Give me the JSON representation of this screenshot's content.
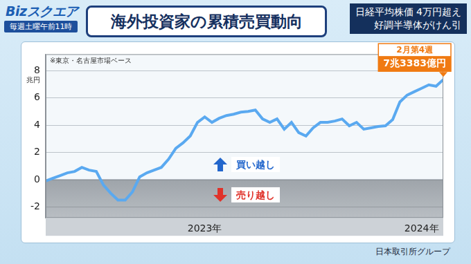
{
  "header": {
    "logo": "Bizスクエア",
    "schedule": "毎週土曜午前11時",
    "title": "海外投資家の累積売買動向",
    "headline": [
      "日経平均株価 4万円超え",
      "好調半導体がけん引"
    ]
  },
  "source": "日本取引所グループ",
  "chart_data": {
    "type": "line",
    "note": "※東京・名古屋市場ベース",
    "y_unit": "兆円",
    "categories": [
      null,
      null,
      null,
      null,
      null,
      null,
      null,
      null,
      null,
      null,
      null,
      null,
      null,
      null,
      null,
      null,
      null,
      null,
      null,
      null,
      null,
      null,
      "2023年",
      null,
      null,
      null,
      null,
      null,
      null,
      null,
      null,
      null,
      null,
      null,
      null,
      null,
      null,
      null,
      null,
      null,
      null,
      null,
      null,
      null,
      null,
      null,
      null,
      null,
      null,
      null,
      null,
      null,
      "2024年",
      null,
      null,
      null
    ],
    "values": [
      -0.1,
      0.1,
      0.3,
      0.5,
      0.6,
      0.9,
      0.7,
      0.6,
      -0.4,
      -1.0,
      -1.5,
      -1.5,
      -0.9,
      0.2,
      0.5,
      0.7,
      0.9,
      1.5,
      2.3,
      2.7,
      3.2,
      4.2,
      4.6,
      4.2,
      4.5,
      4.7,
      4.8,
      4.95,
      5.0,
      5.1,
      4.45,
      4.2,
      4.45,
      3.7,
      4.2,
      3.45,
      3.2,
      3.8,
      4.2,
      4.2,
      4.3,
      4.45,
      3.95,
      4.2,
      3.7,
      3.8,
      3.9,
      3.95,
      4.4,
      5.7,
      6.2,
      6.45,
      6.7,
      6.95,
      6.85,
      7.3383
    ],
    "color": "#5aa9f0",
    "ylim": [
      -2.8,
      9.2
    ],
    "yticks": [
      -2,
      0,
      2,
      4,
      6,
      8
    ],
    "grid": true,
    "baseline": 0,
    "annotations": [
      {
        "text": "買い越し",
        "direction": "up",
        "color": "#2266cc"
      },
      {
        "text": "売り越し",
        "direction": "down",
        "color": "#e0322a"
      }
    ],
    "callout": {
      "title": "2月第4週",
      "label": "7兆3383億円",
      "value": 7.3383,
      "color": "#f07a12"
    }
  }
}
